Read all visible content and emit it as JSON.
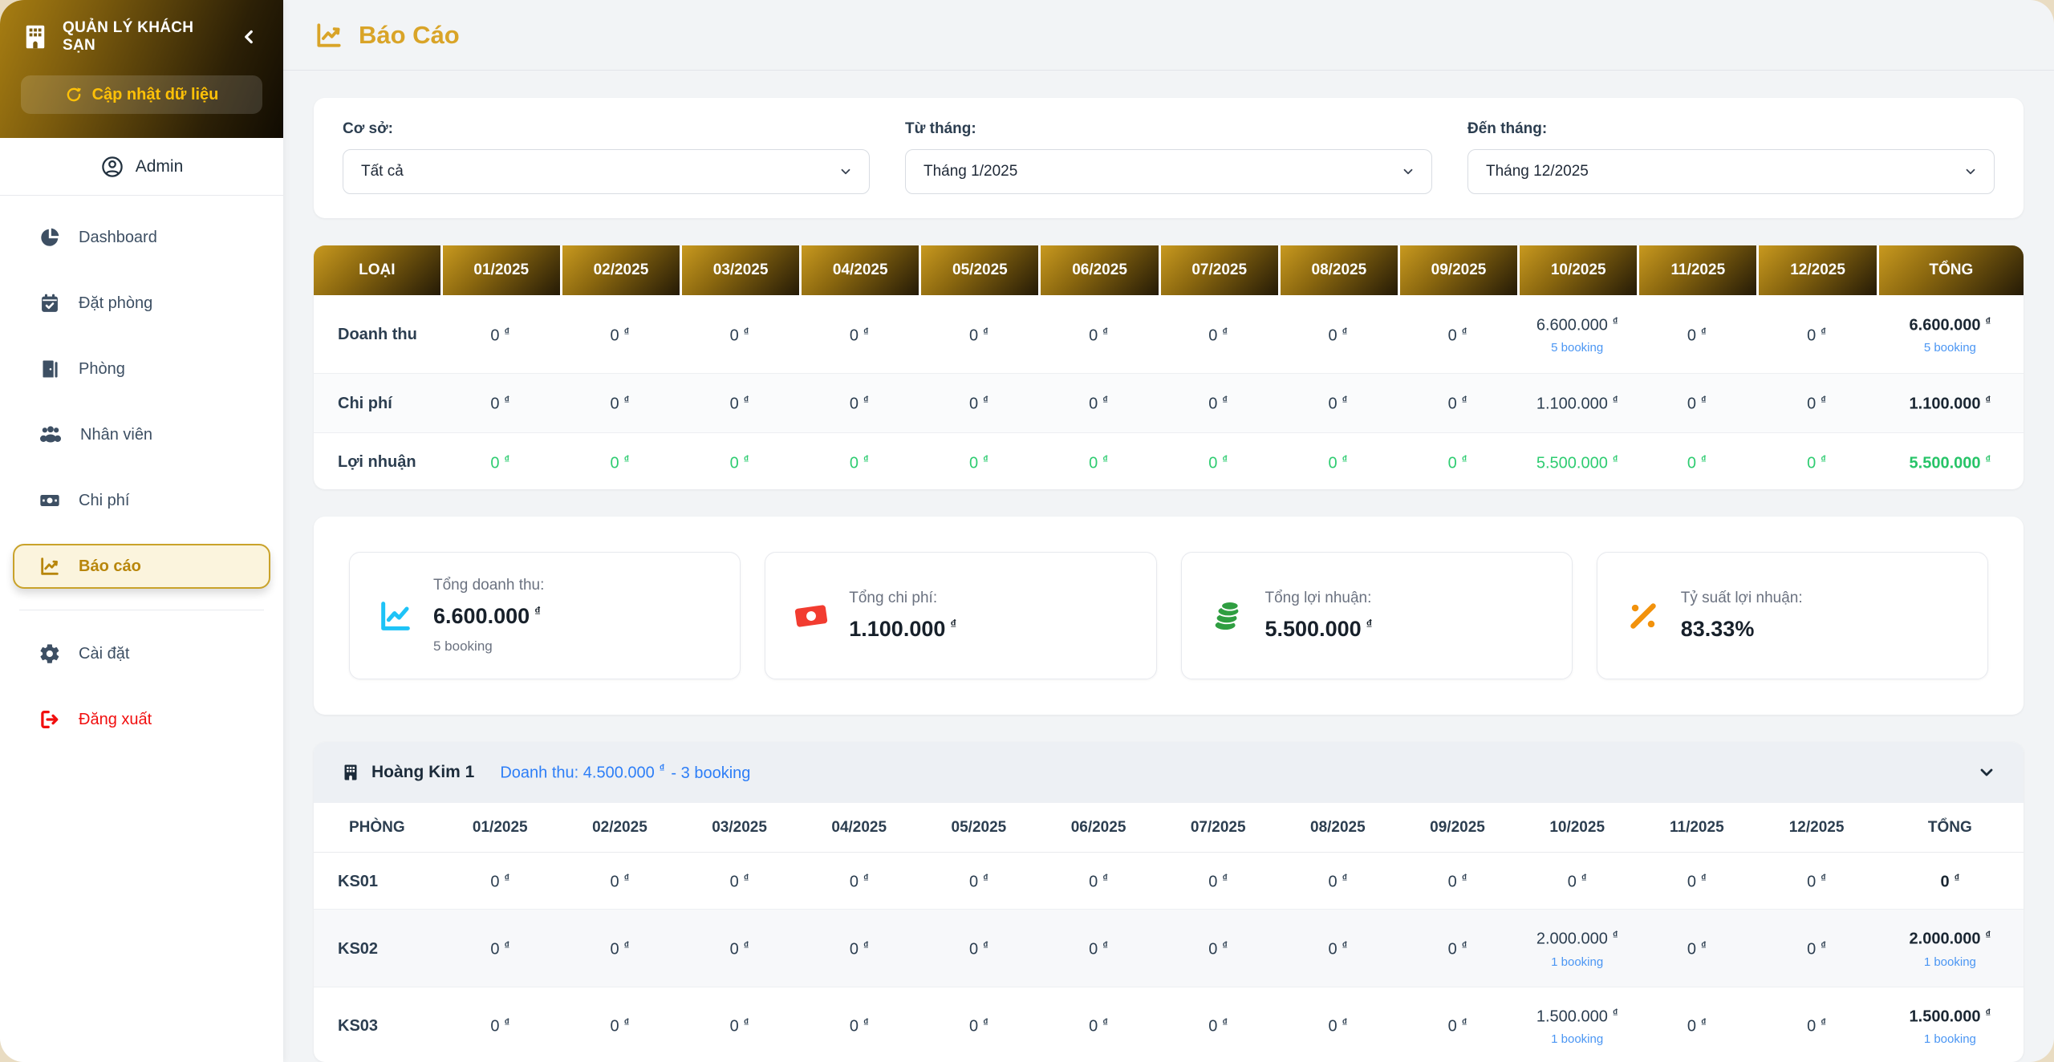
{
  "currency": "₫",
  "sidebar": {
    "brand": {
      "title": "QUẢN LÝ KHÁCH SẠN"
    },
    "update_button": {
      "label": "Cập nhật dữ liệu"
    },
    "user": {
      "name": "Admin"
    },
    "menu": [
      {
        "label": "Dashboard"
      },
      {
        "label": "Đặt phòng"
      },
      {
        "label": "Phòng"
      },
      {
        "label": "Nhân viên"
      },
      {
        "label": "Chi phí"
      },
      {
        "label": "Báo cáo"
      },
      {
        "label": "Cài đặt"
      },
      {
        "label": "Đăng xuất"
      }
    ]
  },
  "header": {
    "title": "Báo Cáo"
  },
  "filters": [
    {
      "label": "Cơ sở:",
      "value": "Tất cả"
    },
    {
      "label": "Từ tháng:",
      "value": "Tháng 1/2025"
    },
    {
      "label": "Đến tháng:",
      "value": "Tháng 12/2025"
    }
  ],
  "summary_table": {
    "columns": [
      "LOẠI",
      "01/2025",
      "02/2025",
      "03/2025",
      "04/2025",
      "05/2025",
      "06/2025",
      "07/2025",
      "08/2025",
      "09/2025",
      "10/2025",
      "11/2025",
      "12/2025",
      "TỔNG"
    ],
    "rows": [
      {
        "label": "Doanh thu",
        "tone": "dark",
        "cells": [
          {
            "v": "0"
          },
          {
            "v": "0"
          },
          {
            "v": "0"
          },
          {
            "v": "0"
          },
          {
            "v": "0"
          },
          {
            "v": "0"
          },
          {
            "v": "0"
          },
          {
            "v": "0"
          },
          {
            "v": "0"
          },
          {
            "v": "6.600.000",
            "note": "5 booking"
          },
          {
            "v": "0"
          },
          {
            "v": "0"
          },
          {
            "v": "6.600.000",
            "note": "5 booking"
          }
        ]
      },
      {
        "label": "Chi phí",
        "tone": "dark",
        "cells": [
          {
            "v": "0"
          },
          {
            "v": "0"
          },
          {
            "v": "0"
          },
          {
            "v": "0"
          },
          {
            "v": "0"
          },
          {
            "v": "0"
          },
          {
            "v": "0"
          },
          {
            "v": "0"
          },
          {
            "v": "0"
          },
          {
            "v": "1.100.000"
          },
          {
            "v": "0"
          },
          {
            "v": "0"
          },
          {
            "v": "1.100.000"
          }
        ]
      },
      {
        "label": "Lợi nhuận",
        "tone": "green",
        "cells": [
          {
            "v": "0"
          },
          {
            "v": "0"
          },
          {
            "v": "0"
          },
          {
            "v": "0"
          },
          {
            "v": "0"
          },
          {
            "v": "0"
          },
          {
            "v": "0"
          },
          {
            "v": "0"
          },
          {
            "v": "0"
          },
          {
            "v": "5.500.000"
          },
          {
            "v": "0"
          },
          {
            "v": "0"
          },
          {
            "v": "5.500.000"
          }
        ]
      }
    ]
  },
  "stats": [
    {
      "label": "Tổng doanh thu:",
      "value": "6.600.000",
      "note": "5 booking"
    },
    {
      "label": "Tổng chi phí:",
      "value": "1.100.000"
    },
    {
      "label": "Tổng lợi nhuận:",
      "value": "5.500.000"
    },
    {
      "label": "Tỷ suất lợi nhuận:",
      "value": "83.33%"
    }
  ],
  "hotel_section": {
    "name": "Hoàng Kim 1",
    "revenue_text": "Doanh thu: 4.500.000",
    "booking_text": "- 3 booking",
    "table": {
      "columns": [
        "PHÒNG",
        "01/2025",
        "02/2025",
        "03/2025",
        "04/2025",
        "05/2025",
        "06/2025",
        "07/2025",
        "08/2025",
        "09/2025",
        "10/2025",
        "11/2025",
        "12/2025",
        "TỔNG"
      ],
      "rows": [
        {
          "label": "KS01",
          "tone": "dark",
          "cells": [
            {
              "v": "0"
            },
            {
              "v": "0"
            },
            {
              "v": "0"
            },
            {
              "v": "0"
            },
            {
              "v": "0"
            },
            {
              "v": "0"
            },
            {
              "v": "0"
            },
            {
              "v": "0"
            },
            {
              "v": "0"
            },
            {
              "v": "0"
            },
            {
              "v": "0"
            },
            {
              "v": "0"
            },
            {
              "v": "0"
            }
          ]
        },
        {
          "label": "KS02",
          "tone": "dark",
          "cells": [
            {
              "v": "0"
            },
            {
              "v": "0"
            },
            {
              "v": "0"
            },
            {
              "v": "0"
            },
            {
              "v": "0"
            },
            {
              "v": "0"
            },
            {
              "v": "0"
            },
            {
              "v": "0"
            },
            {
              "v": "0"
            },
            {
              "v": "2.000.000",
              "note": "1 booking"
            },
            {
              "v": "0"
            },
            {
              "v": "0"
            },
            {
              "v": "2.000.000",
              "note": "1 booking"
            }
          ]
        },
        {
          "label": "KS03",
          "tone": "dark",
          "cells": [
            {
              "v": "0"
            },
            {
              "v": "0"
            },
            {
              "v": "0"
            },
            {
              "v": "0"
            },
            {
              "v": "0"
            },
            {
              "v": "0"
            },
            {
              "v": "0"
            },
            {
              "v": "0"
            },
            {
              "v": "0"
            },
            {
              "v": "1.500.000",
              "note": "1 booking"
            },
            {
              "v": "0"
            },
            {
              "v": "0"
            },
            {
              "v": "1.500.000",
              "note": "1 booking"
            }
          ]
        }
      ]
    }
  },
  "colors": {
    "accent_gold": "#d9a428",
    "profit_green": "#2ecc71",
    "booking_blue": "#4b96f3",
    "danger_red": "#f10e0e"
  }
}
